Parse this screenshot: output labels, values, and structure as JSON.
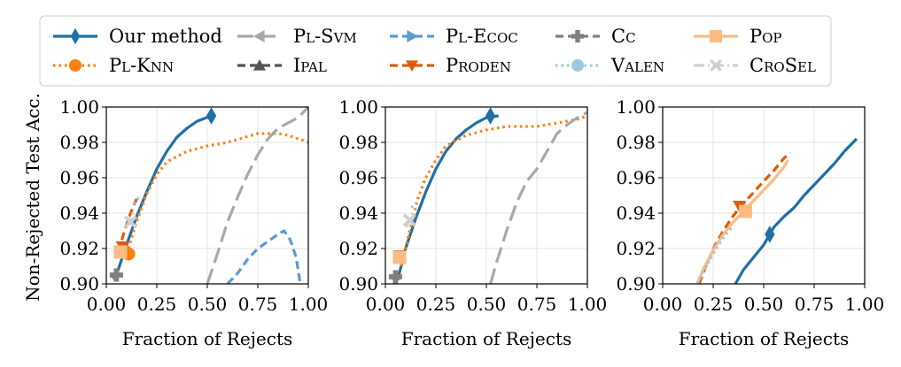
{
  "legend": {
    "items": [
      {
        "label": "Our method",
        "color": "#1f6fa4",
        "marker": "diamond",
        "dash": "solid"
      },
      {
        "label": "Pl-Svm",
        "color": "#a9a9a9",
        "marker": "triangle-left",
        "dash": "longdash"
      },
      {
        "label": "Pl-Ecoc",
        "color": "#5b9bd1",
        "marker": "triangle-right",
        "dash": "dash"
      },
      {
        "label": "Cc",
        "color": "#7f7f7f",
        "marker": "plus",
        "dash": "dash"
      },
      {
        "label": "Pop",
        "color": "#fdbb84",
        "marker": "square",
        "dash": "solid"
      },
      {
        "label": "Pl-Knn",
        "color": "#ff7f0e",
        "marker": "circle",
        "dash": "dot"
      },
      {
        "label": "Ipal",
        "color": "#555555",
        "marker": "triangle-up",
        "dash": "dash"
      },
      {
        "label": "Proden",
        "color": "#d95f0e",
        "marker": "triangle-down",
        "dash": "dash"
      },
      {
        "label": "Valen",
        "color": "#9ecae1",
        "marker": "circle",
        "dash": "dot"
      },
      {
        "label": "CroSel",
        "color": "#cfcfcf",
        "marker": "x",
        "dash": "dashdot"
      }
    ]
  },
  "chart_data": [
    {
      "type": "line",
      "title": "",
      "xlabel": "Fraction of Rejects",
      "ylabel": "Non-Rejected Test Acc.",
      "xlim": [
        0,
        1
      ],
      "ylim": [
        0.9,
        1.0
      ],
      "xticks": [
        "0.00",
        "0.25",
        "0.50",
        "0.75",
        "1.00"
      ],
      "yticks": [
        "0.90",
        "0.92",
        "0.94",
        "0.96",
        "0.98",
        "1.00"
      ],
      "grid": true,
      "series": [
        {
          "name": "Our method",
          "x": [
            0.05,
            0.1,
            0.15,
            0.2,
            0.25,
            0.3,
            0.35,
            0.4,
            0.45,
            0.52
          ],
          "y": [
            0.905,
            0.922,
            0.938,
            0.952,
            0.965,
            0.975,
            0.983,
            0.988,
            0.992,
            0.995
          ],
          "marker_at": [
            0.52,
            0.995
          ]
        },
        {
          "name": "Pl-Knn",
          "x": [
            0.1,
            0.15,
            0.2,
            0.25,
            0.3,
            0.4,
            0.5,
            0.6,
            0.75,
            0.85,
            0.9,
            0.95,
            0.98,
            1.0
          ],
          "y": [
            0.917,
            0.935,
            0.951,
            0.962,
            0.969,
            0.975,
            0.978,
            0.98,
            0.985,
            0.985,
            0.984,
            0.982,
            0.981,
            0.98
          ],
          "marker_at": [
            0.11,
            0.917
          ]
        },
        {
          "name": "Pl-Svm",
          "x": [
            0.5,
            0.55,
            0.6,
            0.65,
            0.7,
            0.75,
            0.8,
            0.85,
            0.9,
            0.95,
            1.0
          ],
          "y": [
            0.9,
            0.917,
            0.935,
            0.949,
            0.962,
            0.973,
            0.982,
            0.988,
            0.991,
            0.994,
            1.0
          ],
          "marker_at": null
        },
        {
          "name": "Pl-Ecoc",
          "x": [
            0.6,
            0.65,
            0.7,
            0.75,
            0.8,
            0.85,
            0.88,
            0.91,
            0.94,
            0.96
          ],
          "y": [
            0.9,
            0.906,
            0.914,
            0.92,
            0.924,
            0.928,
            0.93,
            0.925,
            0.915,
            0.9
          ],
          "marker_at": null
        },
        {
          "name": "Cc",
          "x": [
            0.03,
            0.06
          ],
          "y": [
            0.903,
            0.905
          ],
          "marker_at": [
            0.05,
            0.905
          ]
        },
        {
          "name": "Proden",
          "x": [
            0.06,
            0.09,
            0.12,
            0.15
          ],
          "y": [
            0.918,
            0.93,
            0.94,
            0.948
          ],
          "marker_at": [
            0.08,
            0.921
          ]
        },
        {
          "name": "Pop",
          "x": [
            0.06,
            0.08
          ],
          "y": [
            0.917,
            0.918
          ],
          "marker_at": [
            0.07,
            0.918
          ]
        },
        {
          "name": "CroSel",
          "x": [
            0.1,
            0.12,
            0.14
          ],
          "y": [
            0.932,
            0.937,
            0.942
          ],
          "marker_at": [
            0.12,
            0.935
          ]
        },
        {
          "name": "Valen",
          "x": [
            0.14,
            0.16
          ],
          "y": [
            0.945,
            0.949
          ],
          "marker_at": null
        }
      ]
    },
    {
      "type": "line",
      "title": "",
      "xlabel": "Fraction of Rejects",
      "ylabel": "",
      "xlim": [
        0,
        1
      ],
      "ylim": [
        0.9,
        1.0
      ],
      "xticks": [
        "0.00",
        "0.25",
        "0.50",
        "0.75",
        "1.00"
      ],
      "yticks": [
        "0.90",
        "0.92",
        "0.94",
        "0.96",
        "0.98",
        "1.00"
      ],
      "grid": true,
      "series": [
        {
          "name": "Our method",
          "x": [
            0.06,
            0.1,
            0.15,
            0.2,
            0.25,
            0.3,
            0.35,
            0.4,
            0.45,
            0.5,
            0.56
          ],
          "y": [
            0.902,
            0.92,
            0.937,
            0.952,
            0.965,
            0.975,
            0.982,
            0.987,
            0.991,
            0.994,
            0.995
          ],
          "marker_at": [
            0.52,
            0.995
          ]
        },
        {
          "name": "Pl-Knn",
          "x": [
            0.08,
            0.12,
            0.16,
            0.2,
            0.25,
            0.3,
            0.4,
            0.5,
            0.6,
            0.75,
            0.85,
            0.95,
            1.0
          ],
          "y": [
            0.91,
            0.93,
            0.948,
            0.96,
            0.97,
            0.978,
            0.984,
            0.987,
            0.989,
            0.989,
            0.991,
            0.993,
            0.995
          ],
          "marker_at": null
        },
        {
          "name": "Pl-Svm",
          "x": [
            0.52,
            0.55,
            0.6,
            0.65,
            0.7,
            0.75,
            0.8,
            0.85,
            0.9,
            0.95,
            1.0
          ],
          "y": [
            0.9,
            0.912,
            0.93,
            0.946,
            0.958,
            0.965,
            0.975,
            0.985,
            0.99,
            0.994,
            0.997
          ],
          "marker_at": null
        },
        {
          "name": "Cc",
          "x": [
            0.03,
            0.06
          ],
          "y": [
            0.903,
            0.904
          ],
          "marker_at": [
            0.05,
            0.904
          ]
        },
        {
          "name": "Proden",
          "x": [
            0.06,
            0.08
          ],
          "y": [
            0.914,
            0.916
          ],
          "marker_at": [
            0.07,
            0.916
          ]
        },
        {
          "name": "Pop",
          "x": [
            0.06,
            0.08
          ],
          "y": [
            0.914,
            0.916
          ],
          "marker_at": [
            0.07,
            0.915
          ]
        },
        {
          "name": "CroSel",
          "x": [
            0.1,
            0.12,
            0.14
          ],
          "y": [
            0.932,
            0.936,
            0.942
          ],
          "marker_at": [
            0.12,
            0.936
          ]
        },
        {
          "name": "Valen",
          "x": [
            0.13,
            0.15
          ],
          "y": [
            0.943,
            0.946
          ],
          "marker_at": null
        }
      ]
    },
    {
      "type": "line",
      "title": "",
      "xlabel": "Fraction of Rejects",
      "ylabel": "",
      "xlim": [
        0,
        1
      ],
      "ylim": [
        0.9,
        1.0
      ],
      "xticks": [
        "0.00",
        "0.25",
        "0.50",
        "0.75",
        "1.00"
      ],
      "yticks": [
        "0.90",
        "0.92",
        "0.94",
        "0.96",
        "0.98",
        "1.00"
      ],
      "grid": true,
      "series": [
        {
          "name": "Our method",
          "x": [
            0.36,
            0.4,
            0.45,
            0.5,
            0.55,
            0.6,
            0.65,
            0.7,
            0.75,
            0.8,
            0.85,
            0.9,
            0.96
          ],
          "y": [
            0.9,
            0.908,
            0.915,
            0.922,
            0.932,
            0.938,
            0.943,
            0.95,
            0.956,
            0.962,
            0.968,
            0.975,
            0.982
          ],
          "marker_at": [
            0.53,
            0.928
          ]
        },
        {
          "name": "Proden",
          "x": [
            0.18,
            0.22,
            0.26,
            0.3,
            0.34,
            0.38,
            0.42,
            0.46,
            0.5,
            0.55,
            0.6,
            0.63
          ],
          "y": [
            0.9,
            0.912,
            0.922,
            0.93,
            0.937,
            0.943,
            0.948,
            0.953,
            0.958,
            0.964,
            0.971,
            0.974
          ],
          "marker_at": [
            0.38,
            0.944
          ]
        },
        {
          "name": "Pop",
          "x": [
            0.17,
            0.2,
            0.25,
            0.3,
            0.35,
            0.4,
            0.45,
            0.5,
            0.55,
            0.6,
            0.62
          ],
          "y": [
            0.9,
            0.908,
            0.919,
            0.928,
            0.935,
            0.941,
            0.947,
            0.953,
            0.959,
            0.966,
            0.97
          ],
          "marker_at": [
            0.41,
            0.941
          ]
        },
        {
          "name": "Valen",
          "x": [
            0.17,
            0.2,
            0.25,
            0.3,
            0.35
          ],
          "y": [
            0.9,
            0.907,
            0.917,
            0.926,
            0.933
          ],
          "marker_at": null
        }
      ]
    }
  ]
}
